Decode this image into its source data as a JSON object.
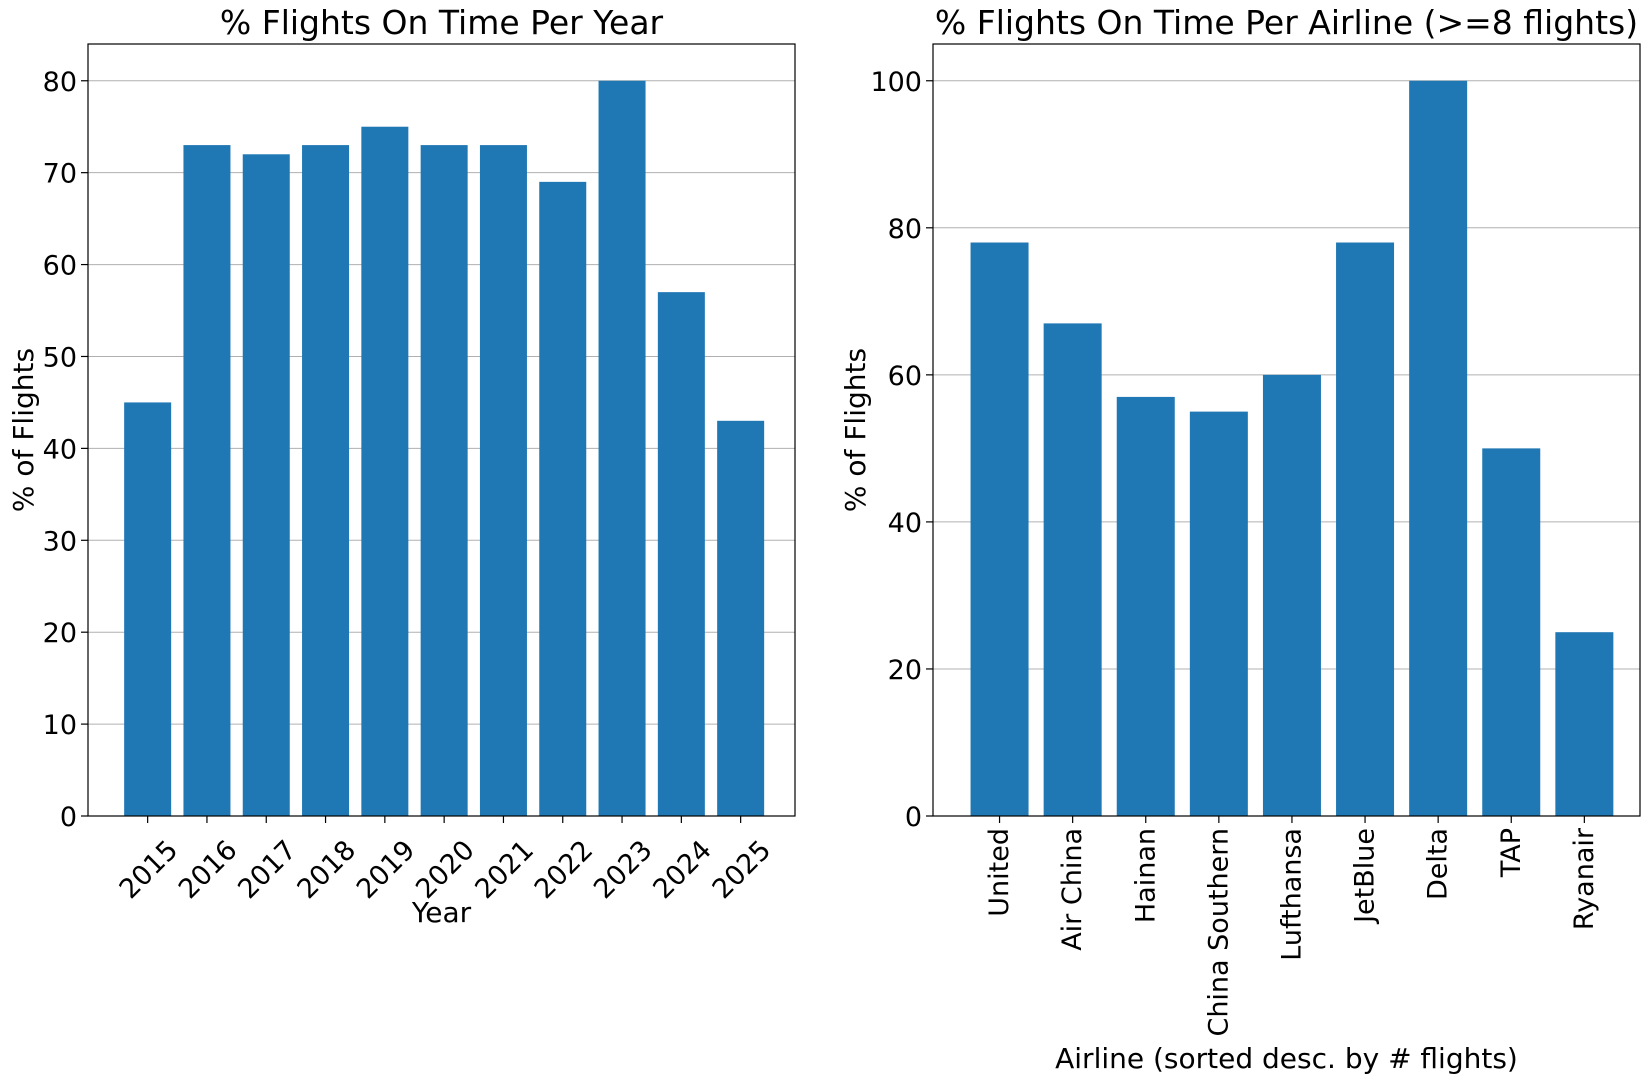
{
  "chart_data": [
    {
      "type": "bar",
      "title": "% Flights On Time Per Year",
      "xlabel": "Year",
      "ylabel": "% of Flights",
      "categories": [
        "2015",
        "2016",
        "2017",
        "2018",
        "2019",
        "2020",
        "2021",
        "2022",
        "2023",
        "2024",
        "2025"
      ],
      "values": [
        45,
        73,
        72,
        73,
        75,
        73,
        73,
        69,
        80,
        57,
        43
      ],
      "ylim": [
        0,
        84
      ],
      "yticks": [
        0,
        10,
        20,
        30,
        40,
        50,
        60,
        70,
        80
      ],
      "grid": "y",
      "xtick_rotation": 45,
      "bar_color": "#1f77b4"
    },
    {
      "type": "bar",
      "title": "% Flights On Time Per Airline (>=8 flights)",
      "xlabel": "Airline (sorted desc. by # flights)",
      "ylabel": "% of Flights",
      "categories": [
        "United",
        "Air China",
        "Hainan",
        "China Southern",
        "Lufthansa",
        "JetBlue",
        "Delta",
        "TAP",
        "Ryanair"
      ],
      "values": [
        78,
        67,
        57,
        55,
        60,
        78,
        100,
        50,
        25
      ],
      "ylim": [
        0,
        105
      ],
      "yticks": [
        0,
        20,
        40,
        60,
        80,
        100
      ],
      "grid": "y",
      "xtick_rotation": 90,
      "bar_color": "#1f77b4"
    }
  ]
}
